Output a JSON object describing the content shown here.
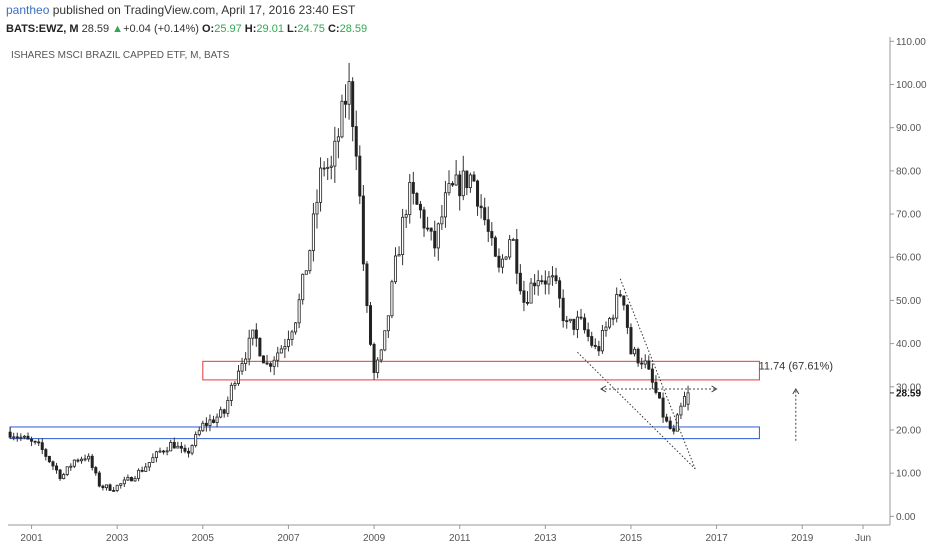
{
  "header": {
    "publisher": "pantheo",
    "published_text": "published on TradingView.com, April 17, 2016 23:40 EST",
    "symbol_interval": "BATS:EWZ, M",
    "last": "28.59",
    "change": "+0.04 (+0.14%)",
    "o_label": "O:",
    "o_value": "25.97",
    "h_label": "H:",
    "h_value": "29.01",
    "l_label": "L:",
    "l_value": "24.75",
    "c_label": "C:",
    "c_value": "28.59"
  },
  "chart_data": {
    "type": "candlestick",
    "title": "ISHARES MSCI BRAZIL CAPPED ETF, M, BATS",
    "x_tick_labels": [
      "2001",
      "2003",
      "2005",
      "2007",
      "2009",
      "2011",
      "2013",
      "2015",
      "2017",
      "2019",
      "Jun"
    ],
    "x_tick_years": [
      2001,
      2003,
      2005,
      2007,
      2009,
      2011,
      2013,
      2015,
      2017,
      2019,
      2020.42
    ],
    "y_tick_labels": [
      "0.00",
      "10.00",
      "20.00",
      "30.00",
      "40.00",
      "50.00",
      "60.00",
      "70.00",
      "80.00",
      "90.00",
      "100.00",
      "110.00"
    ],
    "y_ticks": [
      0,
      10,
      20,
      30,
      40,
      50,
      60,
      70,
      80,
      90,
      100,
      110
    ],
    "ylim": [
      -2,
      111
    ],
    "xlim": [
      2000.45,
      2021.05
    ],
    "last_price_label": "28.59",
    "last_price": 28.59,
    "price_path": [
      [
        2000.5,
        19.5
      ],
      [
        2001.2,
        16
      ],
      [
        2001.7,
        9
      ],
      [
        2002.0,
        13
      ],
      [
        2002.3,
        14
      ],
      [
        2002.6,
        7
      ],
      [
        2002.9,
        6.5
      ],
      [
        2003.2,
        8
      ],
      [
        2003.6,
        11
      ],
      [
        2004.0,
        15
      ],
      [
        2004.3,
        17
      ],
      [
        2004.6,
        14
      ],
      [
        2005.0,
        21
      ],
      [
        2005.5,
        24
      ],
      [
        2005.8,
        34
      ],
      [
        2006.2,
        42
      ],
      [
        2006.5,
        35
      ],
      [
        2006.9,
        40
      ],
      [
        2007.2,
        47
      ],
      [
        2007.5,
        62
      ],
      [
        2007.8,
        82
      ],
      [
        2008.0,
        80
      ],
      [
        2008.4,
        100
      ],
      [
        2008.6,
        85
      ],
      [
        2008.8,
        50
      ],
      [
        2009.0,
        33
      ],
      [
        2009.2,
        38
      ],
      [
        2009.5,
        58
      ],
      [
        2009.8,
        75
      ],
      [
        2010.1,
        70
      ],
      [
        2010.4,
        62
      ],
      [
        2010.7,
        74
      ],
      [
        2011.0,
        77
      ],
      [
        2011.3,
        79
      ],
      [
        2011.6,
        68
      ],
      [
        2011.9,
        56
      ],
      [
        2012.2,
        66
      ],
      [
        2012.5,
        50
      ],
      [
        2012.8,
        56
      ],
      [
        2013.2,
        54
      ],
      [
        2013.5,
        44
      ],
      [
        2013.8,
        45
      ],
      [
        2014.2,
        38
      ],
      [
        2014.6,
        48
      ],
      [
        2014.8,
        53
      ],
      [
        2015.0,
        38
      ],
      [
        2015.3,
        36
      ],
      [
        2015.6,
        28
      ],
      [
        2015.8,
        22
      ],
      [
        2016.0,
        19
      ],
      [
        2016.1,
        23
      ],
      [
        2016.3,
        28.59
      ]
    ],
    "support_zone": {
      "x": [
        2000.5,
        2018.0
      ],
      "y": [
        18,
        20.7
      ],
      "color": "#2a5bd7"
    },
    "resistance_zone": {
      "x": [
        2005.0,
        2018.0
      ],
      "y": [
        31.6,
        35.9
      ],
      "color": "#e53935"
    },
    "trend_lines": [
      {
        "from": [
          2014.75,
          55
        ],
        "to": [
          2016.5,
          11
        ]
      },
      {
        "from": [
          2013.75,
          38
        ],
        "to": [
          2016.5,
          11
        ]
      }
    ],
    "measure": {
      "label": "11.74 (67.61%)",
      "h_arrow": {
        "x": [
          2014.3,
          2017.0
        ],
        "y": 29.5
      },
      "v_arrow": {
        "x": 2018.85,
        "y": [
          17.5,
          29.5
        ]
      }
    },
    "colors": {
      "up": "#ffffff",
      "down": "#222222",
      "wick": "#333333",
      "axis": "#555555"
    }
  }
}
